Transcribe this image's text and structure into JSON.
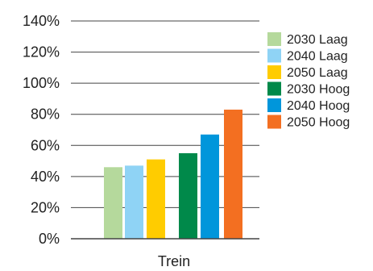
{
  "chart_data": {
    "type": "bar",
    "title": "",
    "xlabel": "",
    "ylabel": "",
    "categories": [
      "Trein"
    ],
    "ylim": [
      0,
      140
    ],
    "yticks": [
      "0%",
      "20%",
      "40%",
      "60%",
      "80%",
      "100%",
      "120%",
      "140%"
    ],
    "y_tick_values": [
      0,
      20,
      40,
      60,
      80,
      100,
      120,
      140
    ],
    "grid": true,
    "legend_position": "right",
    "series": [
      {
        "name": "2030 Laag",
        "values": [
          46
        ],
        "color": "#b5d99c"
      },
      {
        "name": "2040 Laag",
        "values": [
          47
        ],
        "color": "#8fd3f5"
      },
      {
        "name": "2050 Laag",
        "values": [
          51
        ],
        "color": "#ffcc00"
      },
      {
        "name": "2030 Hoog",
        "values": [
          55
        ],
        "color": "#00894a"
      },
      {
        "name": "2040 Hoog",
        "values": [
          67
        ],
        "color": "#0096db"
      },
      {
        "name": "2050 Hoog",
        "values": [
          83
        ],
        "color": "#f36f21"
      }
    ]
  }
}
